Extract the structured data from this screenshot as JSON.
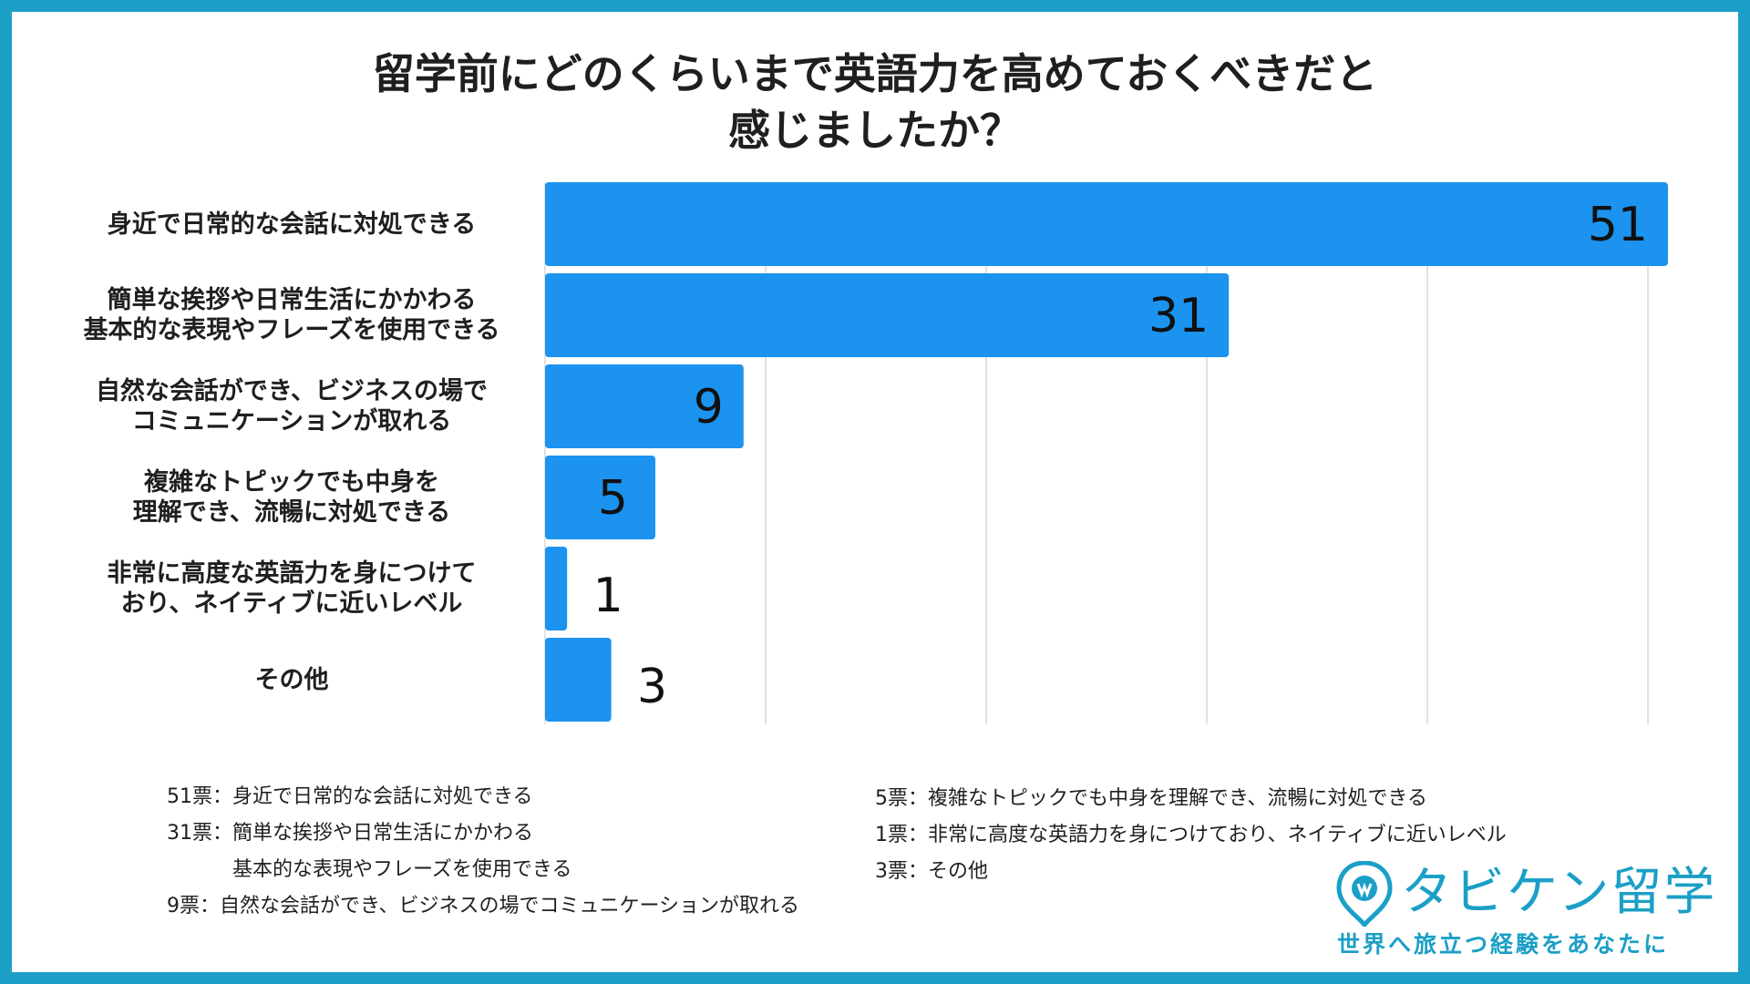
{
  "title": {
    "line1": "留学前にどのくらいまで英語力を高めておくべきだと",
    "line2": "感じましたか？"
  },
  "chart_data": {
    "type": "bar",
    "orientation": "horizontal",
    "title": "留学前にどのくらいまで英語力を高めておくべきだと感じましたか？",
    "categories": [
      [
        "身近で日常的な会話に対処できる"
      ],
      [
        "簡単な挨拶や日常生活にかかわる",
        "基本的な表現やフレーズを使用できる"
      ],
      [
        "自然な会話ができ、ビジネスの場で",
        "コミュニケーションが取れる"
      ],
      [
        "複雑なトピックでも中身を",
        "理解でき、流暢に対処できる"
      ],
      [
        "非常に高度な英語力を身につけて",
        "おり、ネイティブに近いレベル"
      ],
      [
        "その他"
      ]
    ],
    "values": [
      51,
      31,
      9,
      5,
      1,
      3
    ],
    "xlim": [
      0,
      50
    ],
    "grid": true,
    "bar_color": "#1b93ef",
    "xlabel": "",
    "ylabel": ""
  },
  "legend_left": [
    {
      "value": "51票：",
      "lines": [
        "身近で日常的な会話に対処できる"
      ]
    },
    {
      "value": "31票：",
      "lines": [
        "簡単な挨拶や日常生活にかかわる",
        "基本的な表現やフレーズを使用できる"
      ]
    },
    {
      "value": "9票：",
      "lines": [
        "自然な会話ができ、ビジネスの場でコミュニケーションが取れる"
      ]
    }
  ],
  "legend_right": [
    {
      "value": "5票：",
      "lines": [
        "複雑なトピックでも中身を理解でき、流暢に対処できる"
      ]
    },
    {
      "value": "1票：",
      "lines": [
        "非常に高度な英語力を身につけており、ネイティブに近いレベル"
      ]
    },
    {
      "value": "3票：",
      "lines": [
        "その他"
      ]
    }
  ],
  "logo": {
    "name": "タビケン留学",
    "tagline": "世界へ旅立つ経験をあなたに",
    "color": "#1b9fc7"
  }
}
